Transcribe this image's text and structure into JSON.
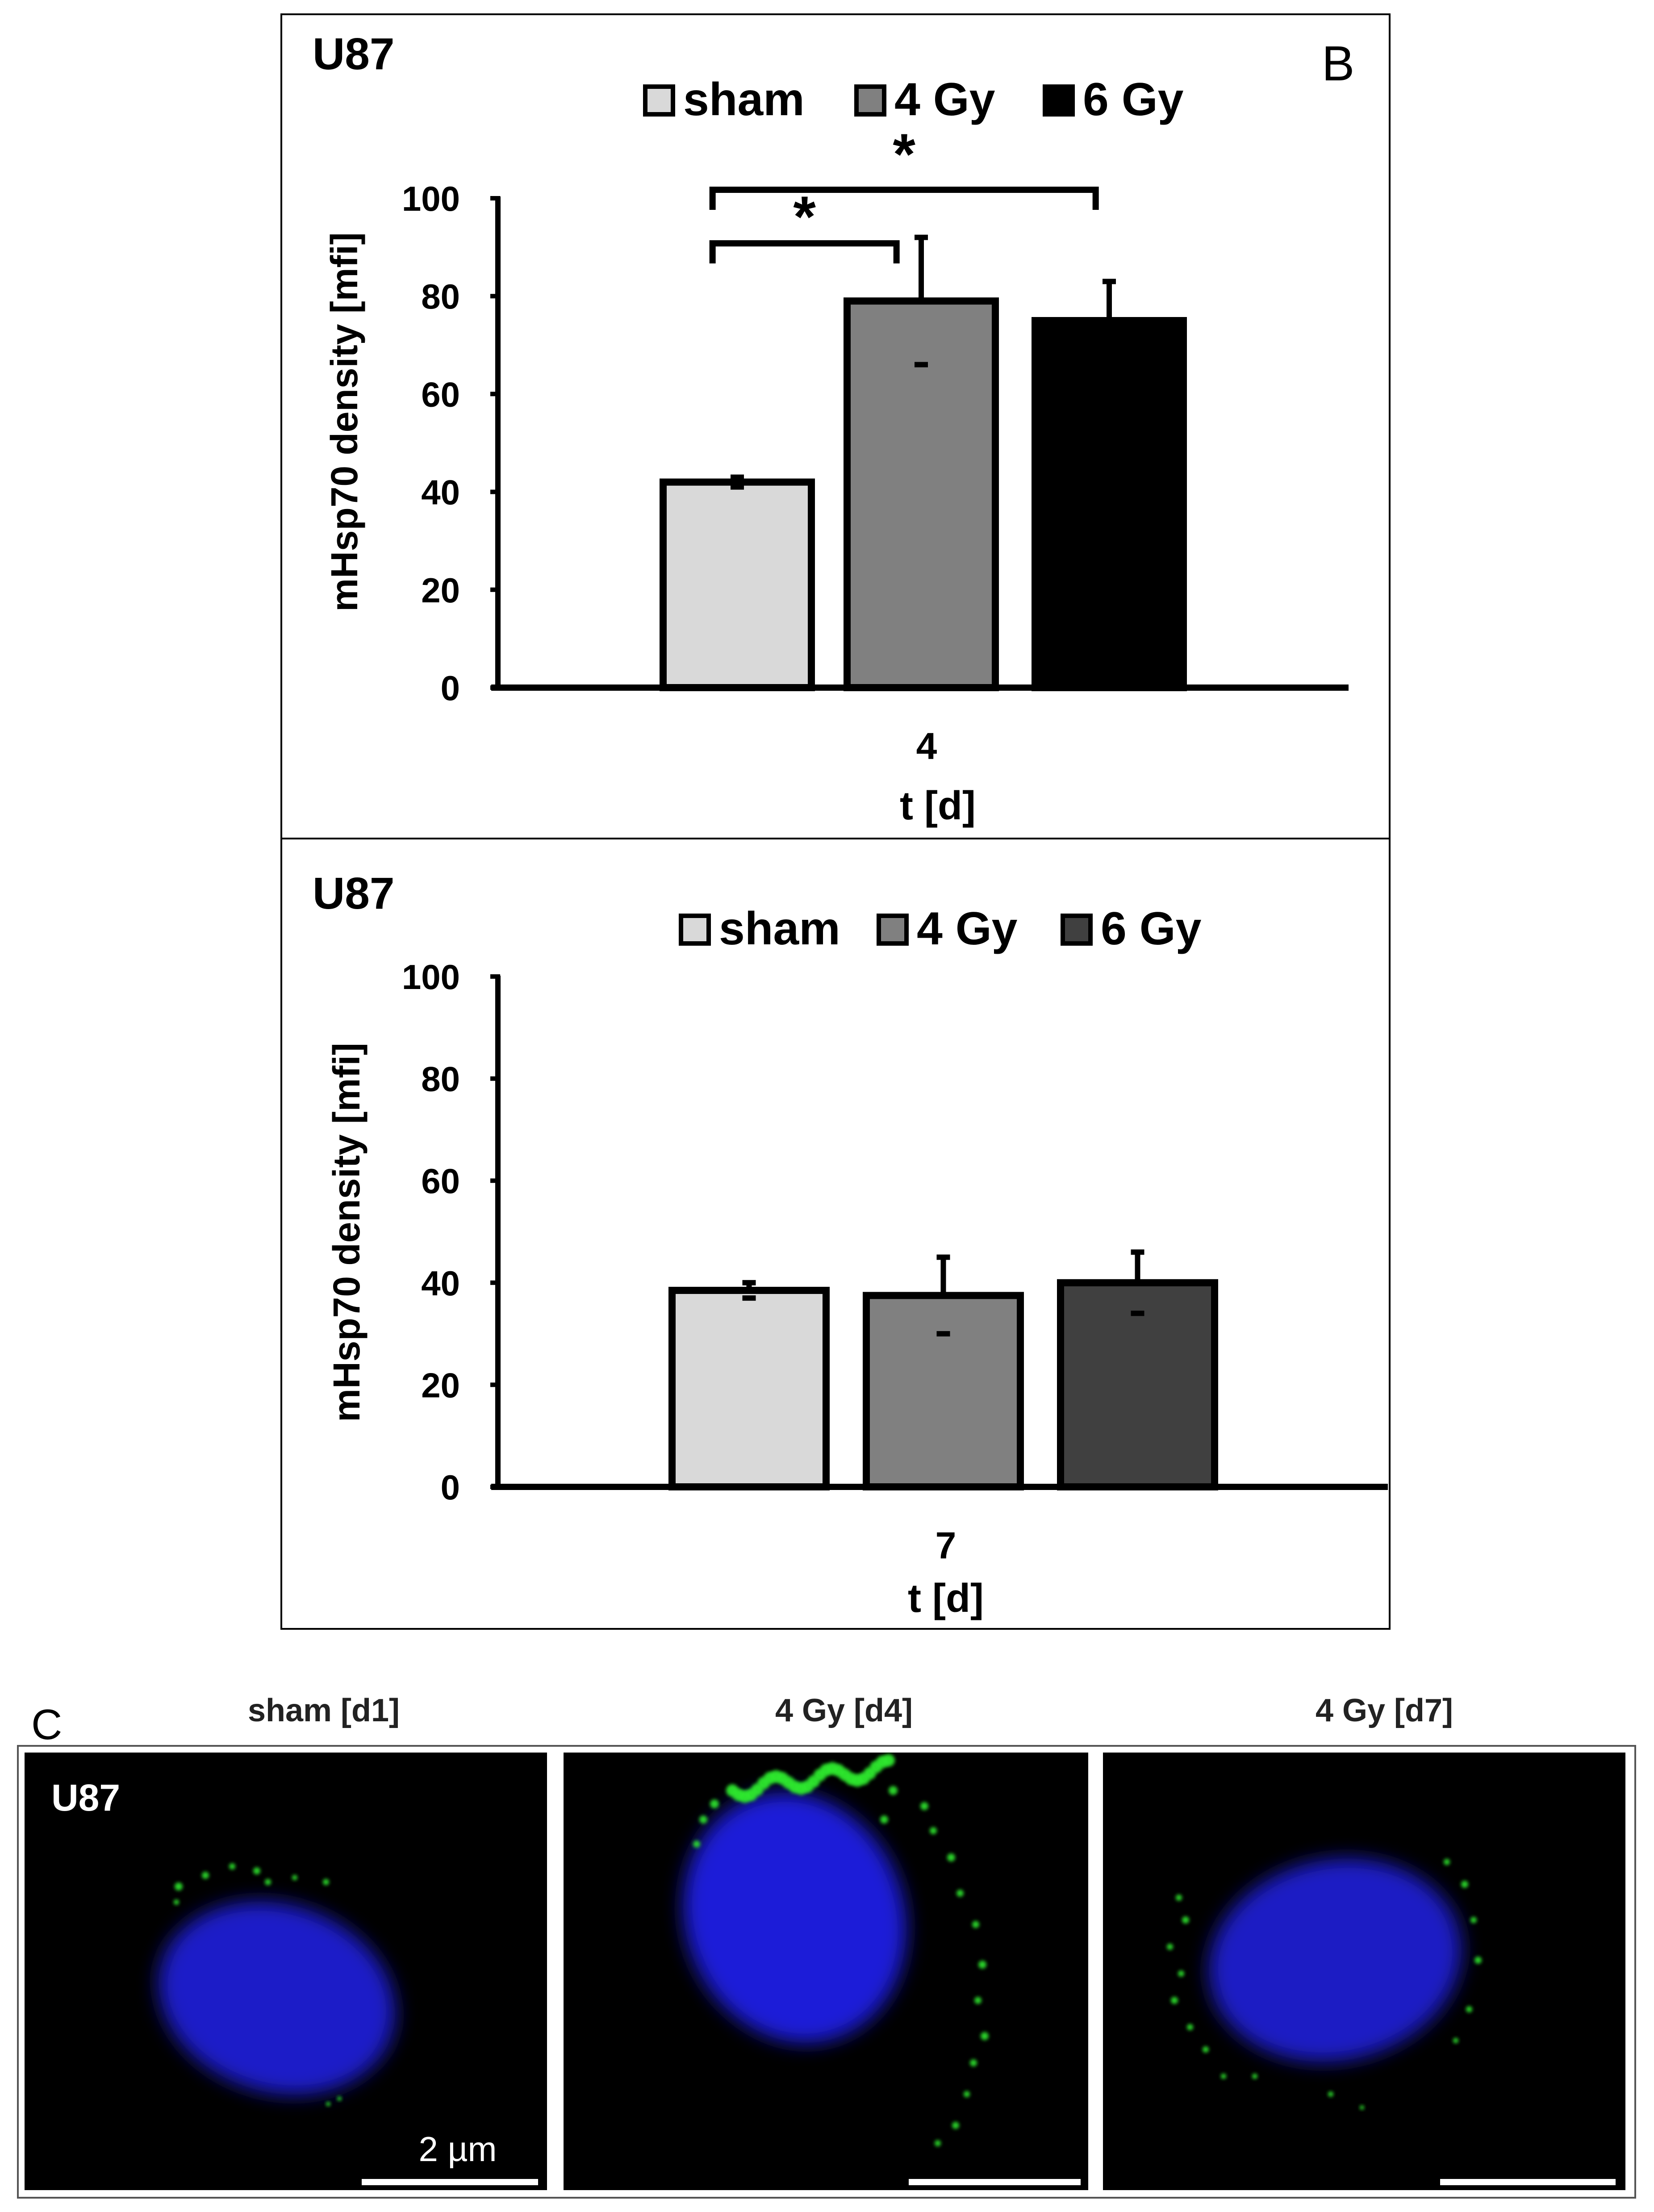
{
  "panel_b": {
    "letter": "B",
    "top_chart": {
      "cell_label": "U87",
      "ylabel": "mHsp70 density [mfi]",
      "xlabel": "t [d]",
      "category": "4",
      "y_ticks": [
        "0",
        "20",
        "40",
        "60",
        "80",
        "100"
      ],
      "significance_mark": "*"
    },
    "bottom_chart": {
      "cell_label": "U87",
      "ylabel": "mHsp70 density [mfi]",
      "xlabel": "t [d]",
      "category": "7",
      "y_ticks": [
        "0",
        "20",
        "40",
        "60",
        "80",
        "100"
      ]
    }
  },
  "panel_c": {
    "letter": "C",
    "cell_label": "U87",
    "scale_label": "2 µm",
    "images": [
      {
        "title": "sham [d1]"
      },
      {
        "title": "4 Gy [d4]"
      },
      {
        "title": "4 Gy [d7]"
      }
    ]
  },
  "chart_data": [
    {
      "type": "bar",
      "categories": [
        "4"
      ],
      "series": [
        {
          "name": "sham",
          "values": [
            42
          ],
          "error": [
            1
          ],
          "color": "#d9d9d9"
        },
        {
          "name": "4 Gy",
          "values": [
            79
          ],
          "error": [
            13
          ],
          "color": "#808080"
        },
        {
          "name": "6 Gy",
          "values": [
            75
          ],
          "error": [
            8
          ],
          "color": "#000000"
        }
      ],
      "xlabel": "t [d]",
      "ylabel": "mHsp70 density [mfi]",
      "ylim": [
        0,
        100
      ],
      "grid": false,
      "legend": "top",
      "significance": [
        {
          "from": "sham",
          "to": "4 Gy",
          "mark": "*"
        },
        {
          "from": "sham",
          "to": "6 Gy",
          "mark": "*"
        }
      ]
    },
    {
      "type": "bar",
      "categories": [
        "7"
      ],
      "series": [
        {
          "name": "sham",
          "values": [
            38.5
          ],
          "error": [
            1.5
          ],
          "color": "#d9d9d9"
        },
        {
          "name": "4 Gy",
          "values": [
            37.5
          ],
          "error": [
            7.5
          ],
          "color": "#808080"
        },
        {
          "name": "6 Gy",
          "values": [
            40
          ],
          "error": [
            6
          ],
          "color": "#404040"
        }
      ],
      "xlabel": "t [d]",
      "ylabel": "mHsp70 density [mfi]",
      "ylim": [
        0,
        100
      ],
      "grid": false,
      "legend": "top"
    }
  ]
}
